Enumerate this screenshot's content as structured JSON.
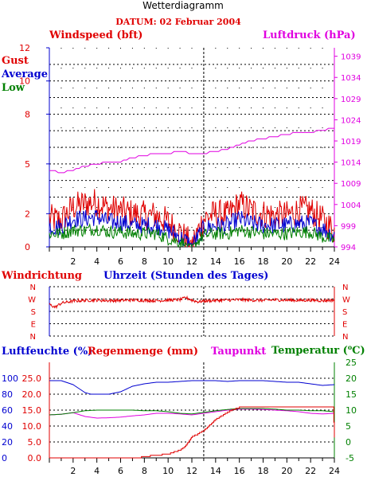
{
  "header": {
    "title": "Wetterdiagramm",
    "date": "DATUM: 02 Februar 2004"
  },
  "colors": {
    "red": "#e00000",
    "blue": "#0000d0",
    "green": "#008000",
    "magenta": "#e000e0"
  },
  "chart_data": [
    {
      "type": "line",
      "panel": "wind",
      "labels": {
        "left": "Windspeed (bft)",
        "right": "Luftdruck (hPa)",
        "gust": "Gust",
        "average": "Average",
        "low": "Low"
      },
      "x_ticks": [
        2,
        4,
        6,
        8,
        10,
        12,
        14,
        16,
        18,
        20,
        22,
        24
      ],
      "xlim": [
        0,
        24
      ],
      "ylim": [
        0,
        12
      ],
      "y_ticks": [
        0,
        2,
        5,
        8,
        10,
        12
      ],
      "y2lim": [
        994,
        1041
      ],
      "y2_ticks": [
        994,
        999,
        1004,
        1009,
        1014,
        1019,
        1024,
        1029,
        1034,
        1039
      ],
      "grid": true,
      "series": [
        {
          "name": "Gust",
          "x": [
            0,
            1,
            2,
            3,
            4,
            5,
            6,
            7,
            8,
            9,
            10,
            11,
            12,
            13,
            14,
            15,
            16,
            17,
            18,
            19,
            20,
            21,
            22,
            23,
            24
          ],
          "y": [
            1.7,
            1.6,
            2.4,
            2.6,
            2.7,
            2.3,
            2.2,
            2.0,
            1.9,
            1.9,
            1.5,
            0.9,
            0.1,
            1.7,
            2.0,
            1.9,
            2.6,
            2.2,
            2.0,
            1.9,
            1.9,
            2.2,
            2.2,
            1.6,
            1.0
          ]
        },
        {
          "name": "Average",
          "x": [
            0,
            1,
            2,
            3,
            4,
            5,
            6,
            7,
            8,
            9,
            10,
            11,
            12,
            13,
            14,
            15,
            16,
            17,
            18,
            19,
            20,
            21,
            22,
            23,
            24
          ],
          "y": [
            1.2,
            1.2,
            1.7,
            1.7,
            1.8,
            1.5,
            1.5,
            1.3,
            1.3,
            1.3,
            1.0,
            0.6,
            0.1,
            1.1,
            1.3,
            1.3,
            1.7,
            1.4,
            1.3,
            1.3,
            1.3,
            1.4,
            1.4,
            1.1,
            0.7
          ]
        },
        {
          "name": "Low",
          "x": [
            0,
            1,
            2,
            3,
            4,
            5,
            6,
            7,
            8,
            9,
            10,
            11,
            12,
            13,
            14,
            15,
            16,
            17,
            18,
            19,
            20,
            21,
            22,
            23,
            24
          ],
          "y": [
            0.8,
            0.8,
            1.0,
            1.0,
            1.1,
            0.9,
            0.9,
            0.8,
            0.8,
            0.8,
            0.5,
            0.3,
            0.0,
            0.7,
            0.8,
            0.8,
            1.0,
            0.9,
            0.8,
            0.8,
            0.8,
            0.9,
            0.9,
            0.6,
            0.4
          ]
        },
        {
          "name": "Luftdruck",
          "x": [
            0,
            1,
            2,
            3,
            4,
            5,
            6,
            7,
            8,
            9,
            10,
            11,
            12,
            13,
            14,
            15,
            16,
            17,
            18,
            19,
            20,
            21,
            22,
            23,
            24
          ],
          "y": [
            1012,
            1011.5,
            1012,
            1013,
            1013.5,
            1014,
            1014,
            1015,
            1015.5,
            1016,
            1016,
            1016.5,
            1016,
            1016,
            1016.5,
            1017,
            1018,
            1019,
            1019.5,
            1020,
            1020.5,
            1021,
            1021,
            1021.5,
            1022
          ]
        }
      ]
    },
    {
      "type": "line",
      "panel": "direction",
      "labels": {
        "left": "Windrichtung",
        "x": "Uhrzeit (Stunden des Tages)"
      },
      "y_ticks": [
        "N",
        "W",
        "S",
        "E",
        "N"
      ],
      "xlim": [
        0,
        24
      ],
      "grid": true,
      "series": [
        {
          "name": "Windrichtung",
          "x": [
            0,
            0.5,
            1,
            2,
            3,
            4,
            5,
            6,
            7,
            8,
            9,
            10,
            11,
            11.5,
            12,
            12.5,
            13,
            14,
            15,
            16,
            17,
            18,
            19,
            20,
            21,
            22,
            23,
            24
          ],
          "y": [
            230,
            210,
            240,
            255,
            260,
            262,
            258,
            260,
            263,
            260,
            258,
            262,
            265,
            280,
            262,
            250,
            255,
            260,
            262,
            265,
            262,
            260,
            264,
            262,
            260,
            262,
            258,
            262
          ]
        }
      ]
    },
    {
      "type": "line",
      "panel": "humidity",
      "labels": {
        "humidity": "Luftfeuchte (%)",
        "rain": "Regenmenge (mm)",
        "dewpoint": "Taupunkt",
        "temperature": "Temperatur (",
        "temperature_end": "C)",
        "degree": "o"
      },
      "x_ticks": [
        2,
        4,
        6,
        8,
        10,
        12,
        14,
        16,
        18,
        20,
        22,
        24
      ],
      "xlim": [
        0,
        24
      ],
      "humidity_ticks": [
        0,
        20,
        40,
        60,
        80,
        100
      ],
      "rain_ticks": [
        "0.0",
        "5.0",
        "10.0",
        "15.0",
        "20.0",
        "25.0"
      ],
      "ylim_humidity": [
        0,
        120
      ],
      "ylim_rain": [
        0,
        30
      ],
      "temp_ticks": [
        -5,
        0,
        5,
        10,
        15,
        20,
        25
      ],
      "ylim_temp": [
        -5,
        25
      ],
      "grid": true,
      "series": [
        {
          "name": "Luftfeuchte",
          "x": [
            0,
            1,
            2,
            3,
            3.5,
            4,
            5,
            6,
            7,
            8,
            9,
            10,
            11,
            12,
            13,
            14,
            15,
            16,
            17,
            18,
            19,
            20,
            21,
            22,
            23,
            24
          ],
          "y": [
            97,
            97,
            92,
            82,
            80,
            80,
            80,
            83,
            90,
            93,
            95,
            95,
            96,
            97,
            97,
            97,
            96,
            97,
            97,
            97,
            96,
            95,
            95,
            93,
            91,
            92
          ]
        },
        {
          "name": "Regenmenge",
          "x": [
            0,
            7.5,
            8,
            9,
            10,
            11,
            11.5,
            12,
            13,
            14,
            15,
            15.5,
            16,
            17,
            18,
            19,
            20,
            21,
            22,
            23,
            23.9,
            24
          ],
          "y": [
            0,
            0,
            0.4,
            0.8,
            1.2,
            2.4,
            3.8,
            6.5,
            8.5,
            12.0,
            14.3,
            15.2,
            15.8,
            16.0,
            16.0,
            16.0,
            16.0,
            16.0,
            16.0,
            16.0,
            16.0,
            6.3
          ]
        },
        {
          "name": "Taupunkt",
          "x": [
            0,
            1,
            2,
            3,
            4,
            5,
            6,
            7,
            8,
            9,
            10,
            11,
            12,
            13,
            14,
            15,
            16,
            17,
            18,
            19,
            20,
            21,
            22,
            23,
            24
          ],
          "y": [
            8.5,
            8.7,
            9.2,
            8.0,
            7.5,
            7.6,
            7.8,
            8.2,
            8.5,
            9.0,
            9.0,
            8.8,
            8.5,
            9.0,
            9.5,
            10.0,
            10.3,
            10.3,
            10.2,
            10.0,
            9.8,
            9.5,
            9.0,
            8.8,
            9.0
          ]
        },
        {
          "name": "Temperatur",
          "x": [
            0,
            1,
            2,
            3,
            4,
            5,
            6,
            7,
            8,
            9,
            10,
            11,
            12,
            13,
            14,
            15,
            16,
            17,
            18,
            19,
            20,
            21,
            22,
            23,
            24
          ],
          "y": [
            8.5,
            8.7,
            9.2,
            9.8,
            10.0,
            10.0,
            10.0,
            10.0,
            9.8,
            9.8,
            9.5,
            9.0,
            8.8,
            9.3,
            9.8,
            10.2,
            10.5,
            10.5,
            10.5,
            10.3,
            10.0,
            10.0,
            9.8,
            9.8,
            9.5
          ]
        }
      ]
    }
  ]
}
